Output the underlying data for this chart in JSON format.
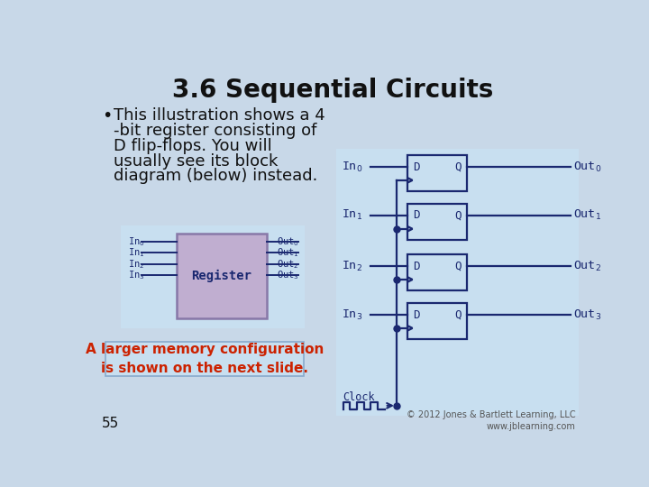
{
  "title": "3.6 Sequential Circuits",
  "title_fontsize": 20,
  "bg_top": "#c8d8e8",
  "bg_bottom": "#dce8f0",
  "slide_bg": "#c8d8e8",
  "text_color": "#111111",
  "bullet_text_line1": "This illustration shows a 4",
  "bullet_text_line2": "-bit register consisting of",
  "bullet_text_line3": "D flip-flops. You will",
  "bullet_text_line4": "usually see its block",
  "bullet_text_line5": "diagram (below) instead.",
  "note_text": "A larger memory configuration\nis shown on the next slide.",
  "note_color": "#cc2200",
  "note_bg": "#c8dff0",
  "note_border": "#88aacc",
  "page_number": "55",
  "copyright": "© 2012 Jones & Bartlett Learning, LLC\nwww.jblearning.com",
  "dff_color": "#1a2870",
  "dff_fill": "#c8dff0",
  "register_fill": "#c0aed0",
  "register_border": "#8878a8",
  "register_bg": "#d0e4f0",
  "panel_bg": "#c8dff0"
}
